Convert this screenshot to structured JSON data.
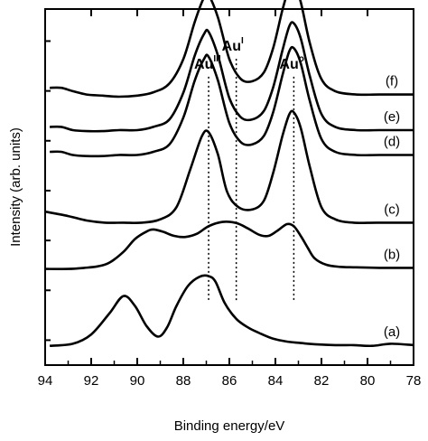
{
  "chart_data": {
    "type": "line",
    "title": "",
    "xlabel": "Binding energy/eV",
    "ylabel": "Intensity (arb. units)",
    "xlim": [
      94,
      78
    ],
    "x_reversed": true,
    "x_ticks": [
      94,
      92,
      90,
      88,
      86,
      84,
      82,
      80,
      78
    ],
    "y_ticks_labeled": false,
    "grid": false,
    "legend": "none",
    "peak_markers": [
      {
        "label": "Au",
        "superscript": "III",
        "x": 86.9
      },
      {
        "label": "Au",
        "superscript": "I",
        "x": 85.7
      },
      {
        "label": "Au",
        "superscript": "o",
        "x": 83.2
      }
    ],
    "series": [
      {
        "name": "(a)",
        "baseline": 0.05,
        "scale": 0.2,
        "x": [
          93.8,
          92.8,
          92.0,
          91.2,
          90.6,
          90.1,
          89.6,
          89.1,
          88.7,
          88.3,
          87.8,
          87.3,
          86.9,
          86.6,
          86.2,
          85.7,
          85.2,
          84.7,
          84.1,
          83.5,
          82.9,
          82.2,
          81.4,
          80.6,
          79.8,
          79.0,
          78.0
        ],
        "y": [
          0.02,
          0.05,
          0.18,
          0.48,
          0.72,
          0.58,
          0.3,
          0.15,
          0.28,
          0.58,
          0.86,
          0.99,
          1.0,
          0.92,
          0.62,
          0.4,
          0.28,
          0.2,
          0.12,
          0.08,
          0.06,
          0.04,
          0.03,
          0.03,
          0.02,
          0.05,
          0.03
        ]
      },
      {
        "name": "(b)",
        "baseline": 0.27,
        "scale": 0.15,
        "x": [
          94.0,
          93.0,
          92.3,
          91.7,
          91.2,
          90.6,
          90.1,
          89.6,
          89.3,
          88.9,
          88.4,
          87.9,
          87.4,
          86.9,
          86.3,
          85.7,
          85.2,
          84.7,
          84.3,
          83.9,
          83.5,
          83.2,
          82.9,
          82.6,
          82.3,
          81.8,
          81.2,
          80.5,
          79.5,
          78.0
        ],
        "y": [
          0.0,
          0.0,
          0.02,
          0.05,
          0.12,
          0.32,
          0.56,
          0.7,
          0.74,
          0.7,
          0.62,
          0.6,
          0.66,
          0.8,
          0.88,
          0.86,
          0.76,
          0.64,
          0.62,
          0.72,
          0.84,
          0.8,
          0.62,
          0.4,
          0.2,
          0.08,
          0.04,
          0.03,
          0.02,
          0.02
        ]
      },
      {
        "name": "(c)",
        "baseline": 0.4,
        "scale": 0.31,
        "x": [
          94.0,
          93.0,
          92.2,
          91.4,
          90.6,
          89.8,
          89.0,
          88.3,
          87.7,
          87.2,
          86.9,
          86.5,
          86.1,
          85.6,
          85.0,
          84.5,
          84.1,
          83.7,
          83.4,
          83.2,
          82.9,
          82.5,
          82.0,
          81.4,
          80.6,
          79.6,
          78.0
        ],
        "y": [
          0.1,
          0.06,
          0.02,
          0.0,
          0.0,
          0.0,
          0.03,
          0.14,
          0.48,
          0.78,
          0.82,
          0.62,
          0.28,
          0.14,
          0.12,
          0.2,
          0.45,
          0.78,
          0.98,
          1.0,
          0.86,
          0.5,
          0.14,
          0.03,
          0.0,
          0.0,
          0.0
        ]
      },
      {
        "name": "(d)",
        "baseline": 0.59,
        "scale": 0.3,
        "x": [
          93.8,
          93.3,
          92.8,
          92.2,
          91.5,
          90.8,
          90.0,
          89.3,
          88.6,
          88.0,
          87.5,
          87.1,
          86.9,
          86.5,
          86.0,
          85.5,
          85.0,
          84.5,
          84.1,
          83.7,
          83.4,
          83.2,
          82.9,
          82.5,
          82.0,
          81.4,
          80.5,
          79.5,
          78.0
        ],
        "y": [
          0.03,
          0.03,
          0.0,
          -0.01,
          -0.01,
          0.0,
          0.0,
          0.03,
          0.1,
          0.35,
          0.7,
          0.9,
          0.92,
          0.7,
          0.3,
          0.12,
          0.1,
          0.18,
          0.4,
          0.74,
          0.97,
          1.0,
          0.86,
          0.5,
          0.15,
          0.03,
          0.0,
          0.0,
          0.0
        ]
      },
      {
        "name": "(e)",
        "baseline": 0.66,
        "scale": 0.3,
        "x": [
          93.8,
          93.3,
          92.8,
          92.2,
          91.5,
          90.8,
          90.0,
          89.3,
          88.6,
          88.0,
          87.5,
          87.1,
          86.9,
          86.5,
          86.0,
          85.5,
          85.0,
          84.5,
          84.1,
          83.7,
          83.4,
          83.2,
          82.9,
          82.5,
          82.0,
          81.4,
          80.5,
          79.5,
          78.0
        ],
        "y": [
          0.03,
          0.03,
          0.0,
          -0.01,
          -0.01,
          0.0,
          0.0,
          0.03,
          0.1,
          0.35,
          0.7,
          0.9,
          0.92,
          0.7,
          0.3,
          0.12,
          0.1,
          0.18,
          0.4,
          0.74,
          0.97,
          1.0,
          0.86,
          0.5,
          0.15,
          0.03,
          0.0,
          0.0,
          0.0
        ]
      },
      {
        "name": "(f)",
        "baseline": 0.76,
        "scale": 0.31,
        "x": [
          93.8,
          93.3,
          92.8,
          92.2,
          91.5,
          90.8,
          90.0,
          89.3,
          88.6,
          88.0,
          87.5,
          87.1,
          86.9,
          86.5,
          86.0,
          85.5,
          85.0,
          84.5,
          84.1,
          83.7,
          83.4,
          83.2,
          82.9,
          82.5,
          82.0,
          81.4,
          80.5,
          79.5,
          78.0
        ],
        "y": [
          0.06,
          0.06,
          0.03,
          0.0,
          -0.01,
          -0.02,
          -0.01,
          0.02,
          0.1,
          0.32,
          0.66,
          0.88,
          0.9,
          0.7,
          0.32,
          0.14,
          0.12,
          0.2,
          0.42,
          0.76,
          0.97,
          1.0,
          0.84,
          0.46,
          0.14,
          0.03,
          0.0,
          0.0,
          0.0
        ]
      }
    ]
  }
}
